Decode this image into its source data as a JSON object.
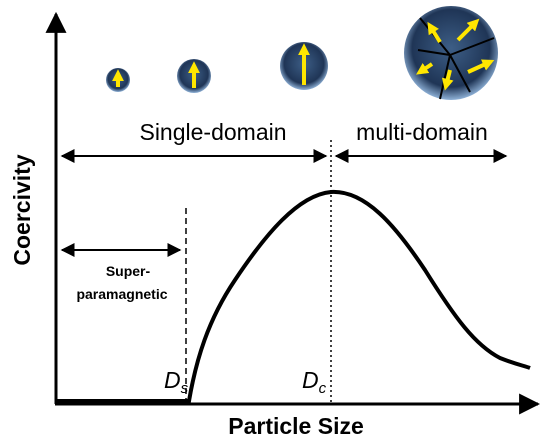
{
  "axes": {
    "y_label": "Coercivity",
    "x_label": "Particle Size"
  },
  "regions": {
    "single_domain": "Single-domain",
    "multi_domain": "multi-domain",
    "superparamagnetic": [
      "Super-",
      "paramagnetic"
    ]
  },
  "markers": {
    "ds": {
      "main": "D",
      "sub": "s"
    },
    "dc": {
      "main": "D",
      "sub": "c"
    }
  }
}
